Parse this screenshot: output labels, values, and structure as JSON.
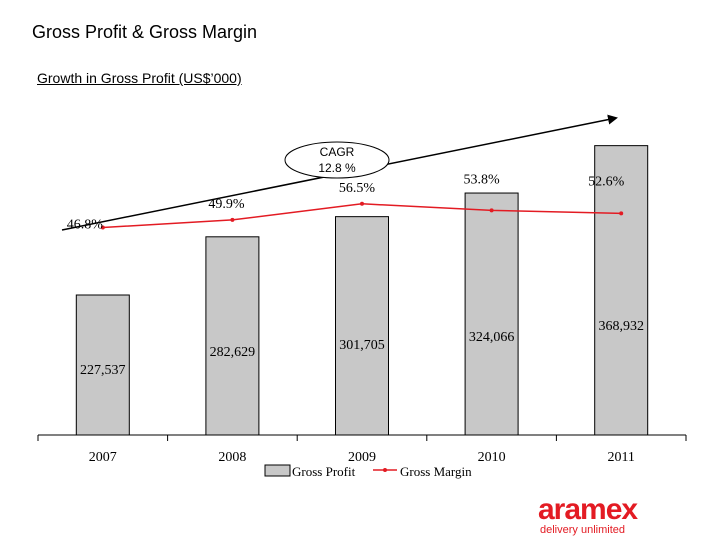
{
  "page": {
    "title": "Gross Profit & Gross Margin",
    "subtitle": "Growth in Gross Profit (US$’000)"
  },
  "cagr": {
    "label": "CAGR",
    "value": "12.8 %"
  },
  "legend": {
    "bar": "Gross Profit",
    "line": "Gross Margin"
  },
  "brand": {
    "name": "aramex",
    "tagline": "delivery unlimited",
    "color": "#e31b23"
  },
  "colors": {
    "bar": "#c8c8c8",
    "line": "#e31b23",
    "axis": "#000000"
  },
  "chart_data": {
    "type": "bar",
    "title": "Growth in Gross Profit (US$’000)",
    "categories": [
      "2007",
      "2008",
      "2009",
      "2010",
      "2011"
    ],
    "series": [
      {
        "name": "Gross Profit",
        "kind": "bar",
        "values": [
          227537,
          282629,
          301705,
          324066,
          368932
        ],
        "labels": [
          "227,537",
          "282,629",
          "301,705",
          "324,066",
          "368,932"
        ]
      },
      {
        "name": "Gross Margin",
        "kind": "line",
        "values": [
          46.8,
          49.9,
          56.5,
          53.8,
          52.6
        ],
        "labels": [
          "46.8%",
          "49.9%",
          "56.5%",
          "53.8%",
          "52.6%"
        ]
      }
    ],
    "xlabel": "",
    "ylabel": "",
    "grid": false,
    "legend_position": "bottom-center"
  }
}
